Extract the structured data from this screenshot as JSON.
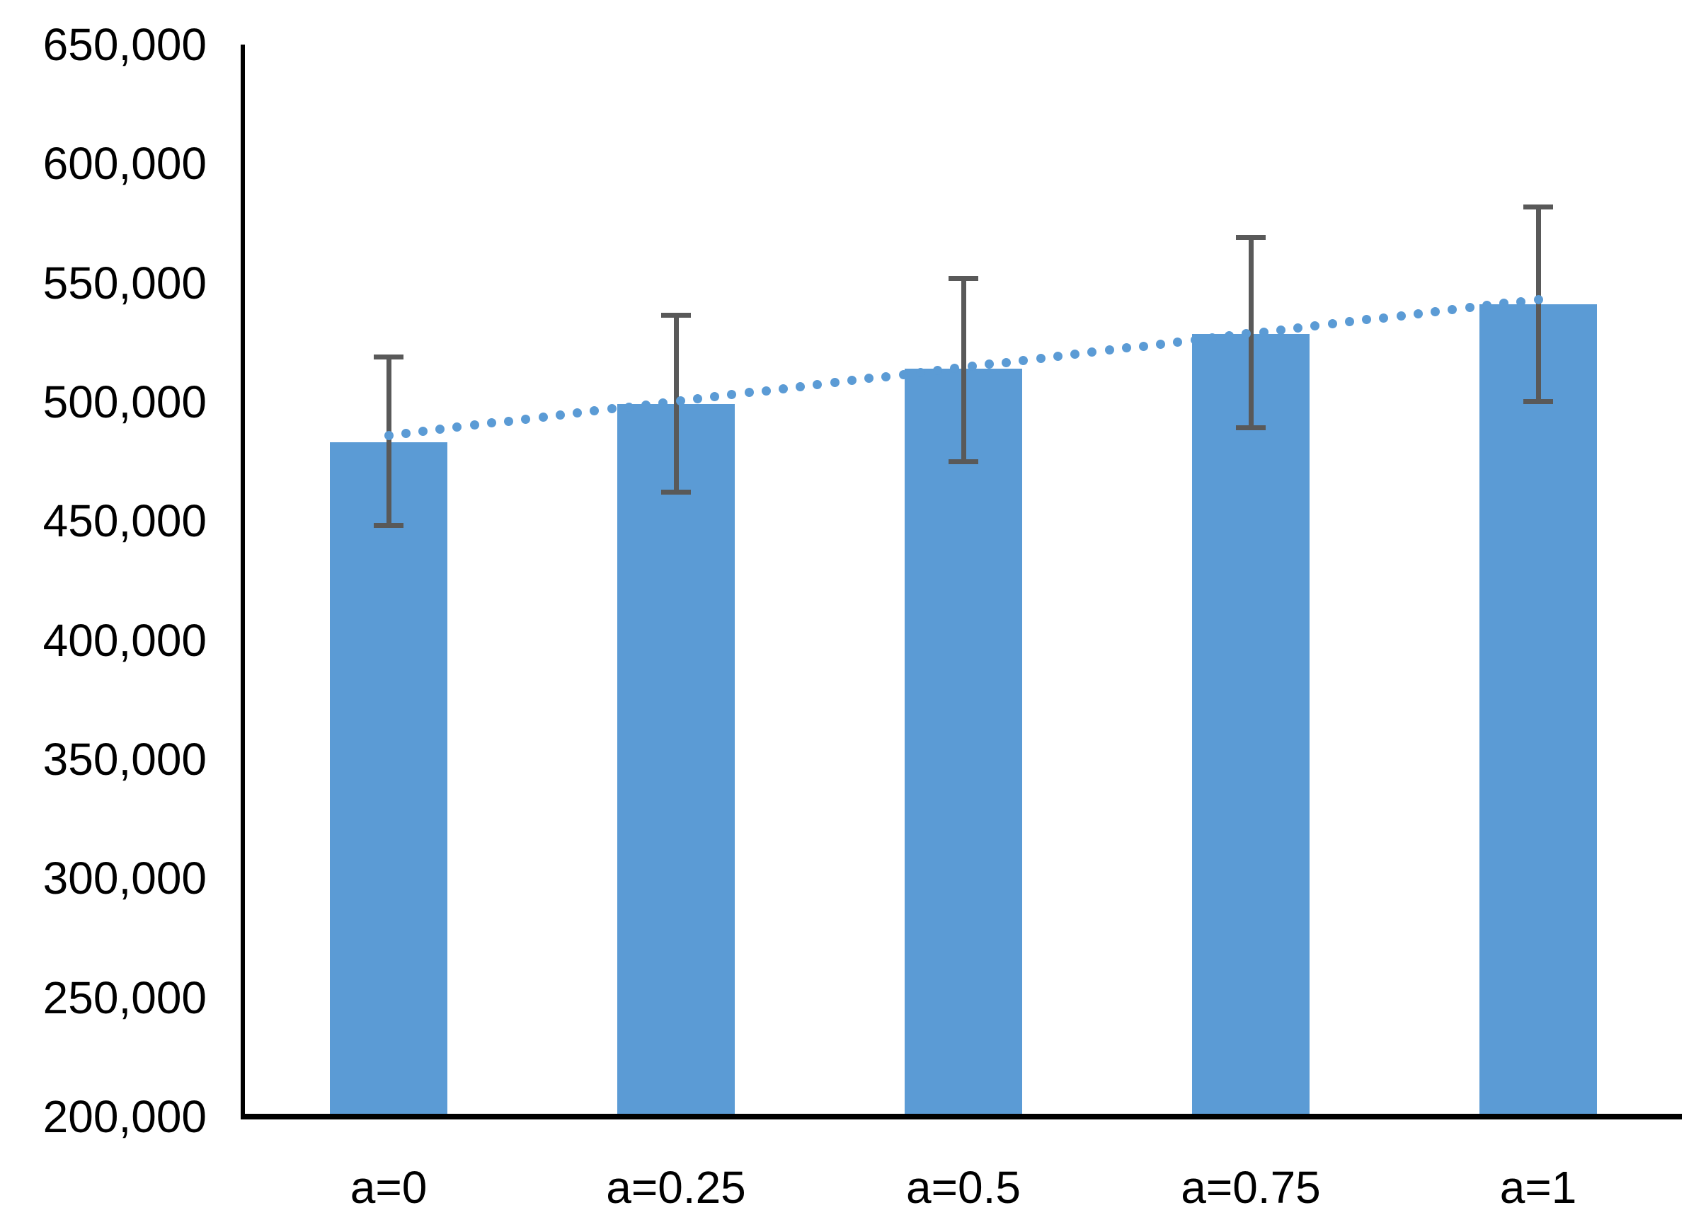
{
  "chart_data": {
    "type": "bar",
    "title": "",
    "xlabel": "",
    "ylabel": "",
    "categories": [
      "a=0",
      "a=0.25",
      "a=0.5",
      "a=0.75",
      "a=1"
    ],
    "series": [
      {
        "name": "mean",
        "values": [
          483000,
          499000,
          514000,
          528500,
          541000
        ],
        "error_high": [
          520000,
          537500,
          553000,
          570000,
          583000
        ],
        "error_low": [
          447000,
          461000,
          474000,
          488000,
          499000
        ]
      }
    ],
    "trendline": {
      "type": "linear",
      "style": "dotted",
      "start_value": 486000,
      "end_value": 543000
    },
    "ylim": [
      200000,
      650000
    ],
    "ytick_step": 50000,
    "ytick_labels": [
      "650,000",
      "600,000",
      "550,000",
      "500,000",
      "450,000",
      "400,000",
      "350,000",
      "300,000",
      "250,000",
      "200,000"
    ],
    "grid": false,
    "legend": false,
    "colors": {
      "bar": "#5B9BD5",
      "error_bar": "#595959",
      "trend_dot": "#5B9BD5",
      "axis": "#000000",
      "text": "#000000"
    }
  }
}
